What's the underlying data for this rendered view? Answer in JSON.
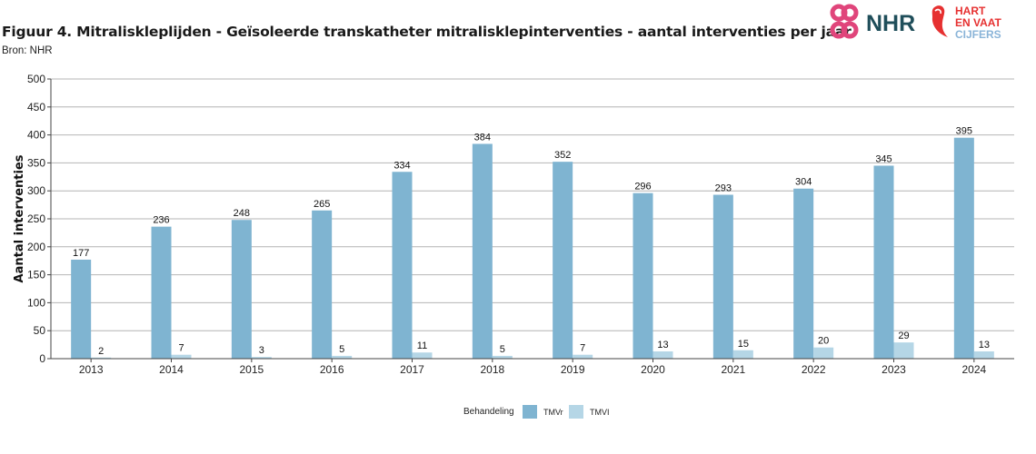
{
  "header": {
    "title": "Figuur 4. Mitraliskleplijden - Geïsoleerde transkatheter mitralisklepinterventies - aantal interventies per jaar",
    "source": "Bron: NHR"
  },
  "logos": {
    "nhr_text": "NHR",
    "hart_line1": "HART",
    "hart_line2": "EN VAAT",
    "hart_line3": "CIJFERS",
    "nhr_color": "#e0457b",
    "nhr_text_color": "#1f4e5a",
    "hart_color": "#e63030",
    "cijfers_color": "#8ab4d8"
  },
  "chart_data": {
    "type": "bar",
    "categories": [
      "2013",
      "2014",
      "2015",
      "2016",
      "2017",
      "2018",
      "2019",
      "2020",
      "2021",
      "2022",
      "2023",
      "2024"
    ],
    "series": [
      {
        "name": "TMVr",
        "color": "#7fb4d1",
        "values": [
          177,
          236,
          248,
          265,
          334,
          384,
          352,
          296,
          293,
          304,
          345,
          395
        ]
      },
      {
        "name": "TMVI",
        "color": "#b5d6e6",
        "values": [
          2,
          7,
          3,
          5,
          11,
          5,
          7,
          13,
          15,
          20,
          29,
          13
        ]
      }
    ],
    "ylabel": "Aantal interventies",
    "xlabel": "",
    "ylim": [
      0,
      500
    ],
    "yticks": [
      0,
      50,
      100,
      150,
      200,
      250,
      300,
      350,
      400,
      450,
      500
    ],
    "grid": true,
    "legend": {
      "title": "Behandeling",
      "position": "bottom"
    },
    "data_labels": true
  }
}
